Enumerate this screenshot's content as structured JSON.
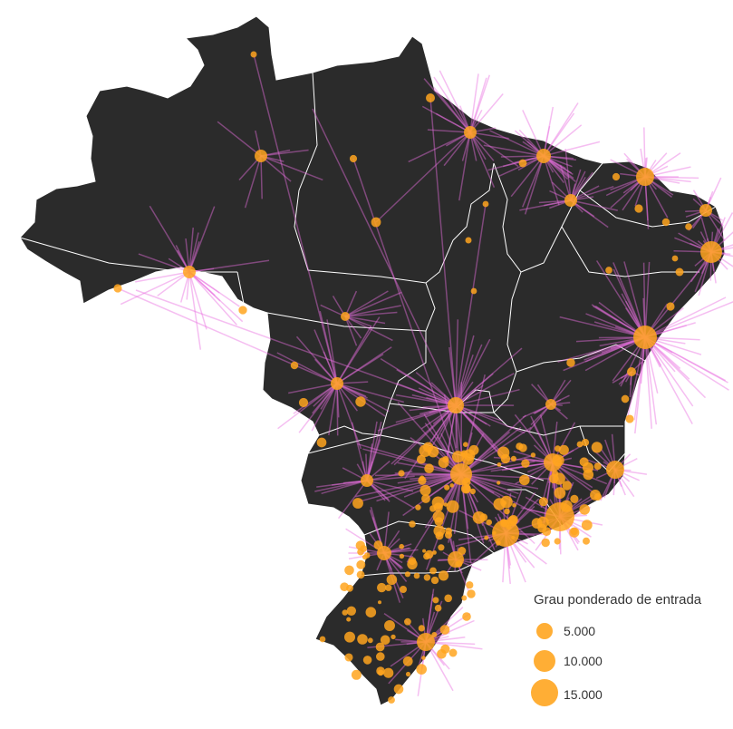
{
  "map": {
    "land_color": "#2b2b2b",
    "border_color": "#ffffff",
    "link_color": "#e96fe0",
    "node_color": "#ffa51f"
  },
  "legend": {
    "title": "Grau ponderado de entrada",
    "items": [
      {
        "label": "5.000",
        "value": 5000
      },
      {
        "label": "10.000",
        "value": 10000
      },
      {
        "label": "15.000",
        "value": 15000
      }
    ]
  }
}
